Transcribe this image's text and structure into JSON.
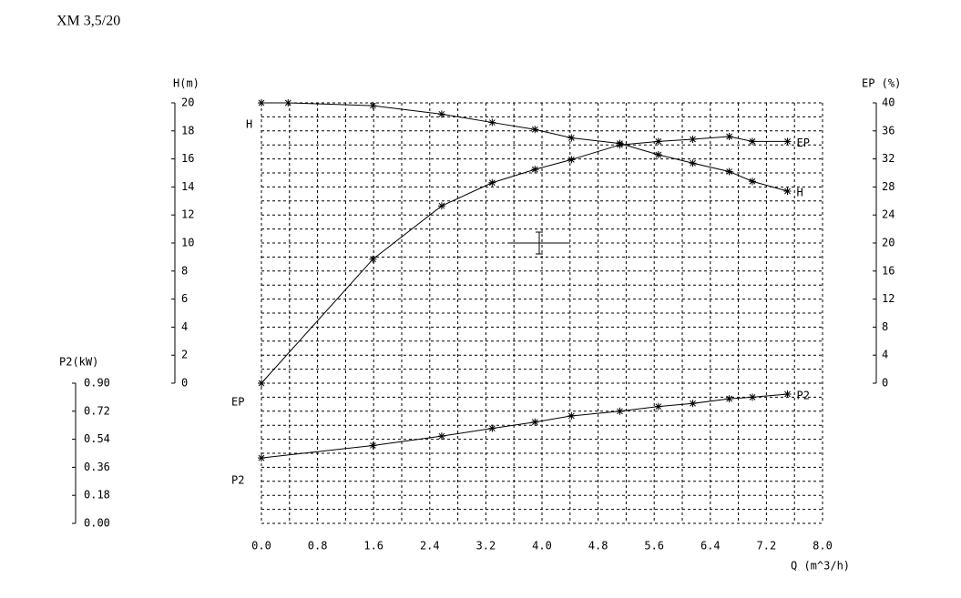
{
  "chart_data": {
    "type": "line",
    "title": "XM 3,5/20",
    "xlabel": "Q (m^3/h)",
    "ylabel": "H(m)",
    "y2label": "EP (%)",
    "y3label": "P2(kW)",
    "xlim": [
      0,
      8
    ],
    "xticks": [
      {
        "value": 0,
        "label": "0.0"
      },
      0.8,
      1.6,
      2.4,
      3.2,
      {
        "value": 4,
        "label": "4.0"
      },
      4.8,
      5.6,
      6.4,
      7.2,
      {
        "value": 8,
        "label": "8.0"
      }
    ],
    "ylim": [
      0,
      20
    ],
    "yticks": [
      0,
      2,
      4,
      6,
      8,
      10,
      12,
      14,
      16,
      18,
      20
    ],
    "y2lim": [
      0,
      40
    ],
    "y2ticks": [
      0,
      4,
      8,
      12,
      16,
      20,
      24,
      28,
      32,
      36,
      40
    ],
    "y3lim": [
      0,
      0.9
    ],
    "y3ticks": [
      {
        "value": 0,
        "label": "0.00"
      },
      0.18,
      0.36,
      0.54,
      0.72,
      {
        "value": 0.9,
        "label": "0.90"
      }
    ],
    "grid": true,
    "series": [
      {
        "name": "H",
        "color": "#000000",
        "x": [
          0,
          0.38,
          1.59,
          2.57,
          3.29,
          3.9,
          4.42,
          5.11,
          5.66,
          6.15,
          6.67,
          7.0,
          7.5
        ],
        "values": [
          20,
          20,
          19.8,
          19.2,
          18.6,
          18.1,
          17.5,
          17.1,
          16.3,
          15.7,
          15.1,
          14.4,
          13.7
        ]
      },
      {
        "name": "EP",
        "color": "#000000",
        "axis": "y2",
        "x": [
          0,
          1.59,
          2.57,
          3.29,
          3.9,
          4.42,
          5.11,
          5.66,
          6.15,
          6.67,
          7.0,
          7.5
        ],
        "values": [
          0,
          17.7,
          25.3,
          28.6,
          30.5,
          31.9,
          34.0,
          34.5,
          34.8,
          35.2,
          34.5,
          34.5
        ]
      },
      {
        "name": "P2",
        "color": "#000000",
        "axis": "y3",
        "x": [
          0,
          1.59,
          2.57,
          3.29,
          3.9,
          4.42,
          5.11,
          5.66,
          6.15,
          6.67,
          7.0,
          7.5
        ],
        "values": [
          0.42,
          0.5,
          0.56,
          0.61,
          0.65,
          0.69,
          0.72,
          0.75,
          0.77,
          0.8,
          0.81,
          0.83
        ]
      }
    ]
  }
}
